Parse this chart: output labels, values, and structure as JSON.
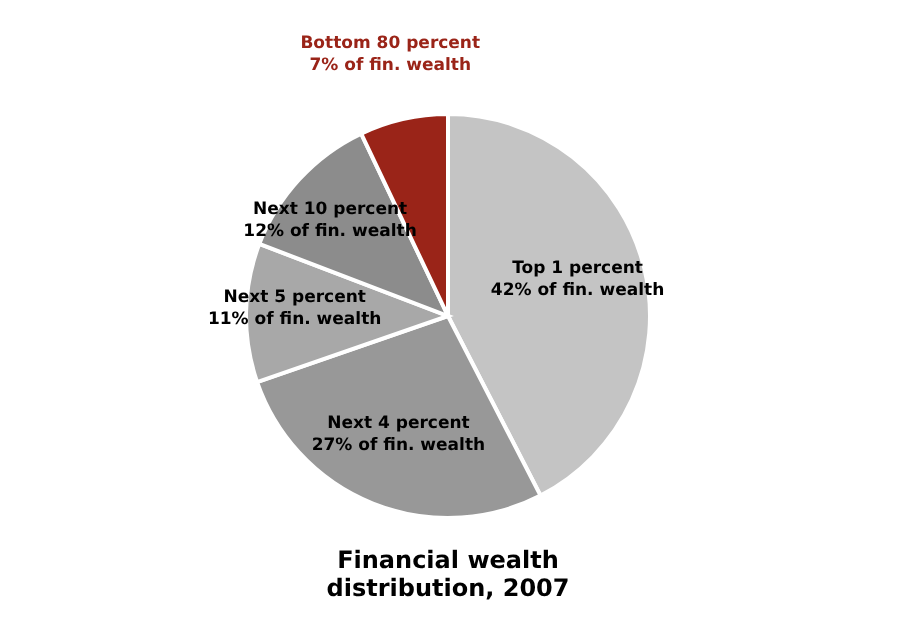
{
  "chart_data": {
    "type": "pie",
    "title": "Financial wealth distribution, 2007",
    "categories": [
      "Top 1 percent",
      "Next 4 percent",
      "Next 5 percent",
      "Next 10 percent",
      "Bottom 80 percent"
    ],
    "values": [
      42,
      27,
      11,
      12,
      7
    ],
    "value_labels": [
      "42% of fin. wealth",
      "27% of fin. wealth",
      "11% of fin. wealth",
      "12% of fin. wealth",
      "7% of fin. wealth"
    ],
    "colors": [
      "#c4c4c4",
      "#989898",
      "#a8a8a8",
      "#8c8c8c",
      "#9a2418"
    ]
  }
}
